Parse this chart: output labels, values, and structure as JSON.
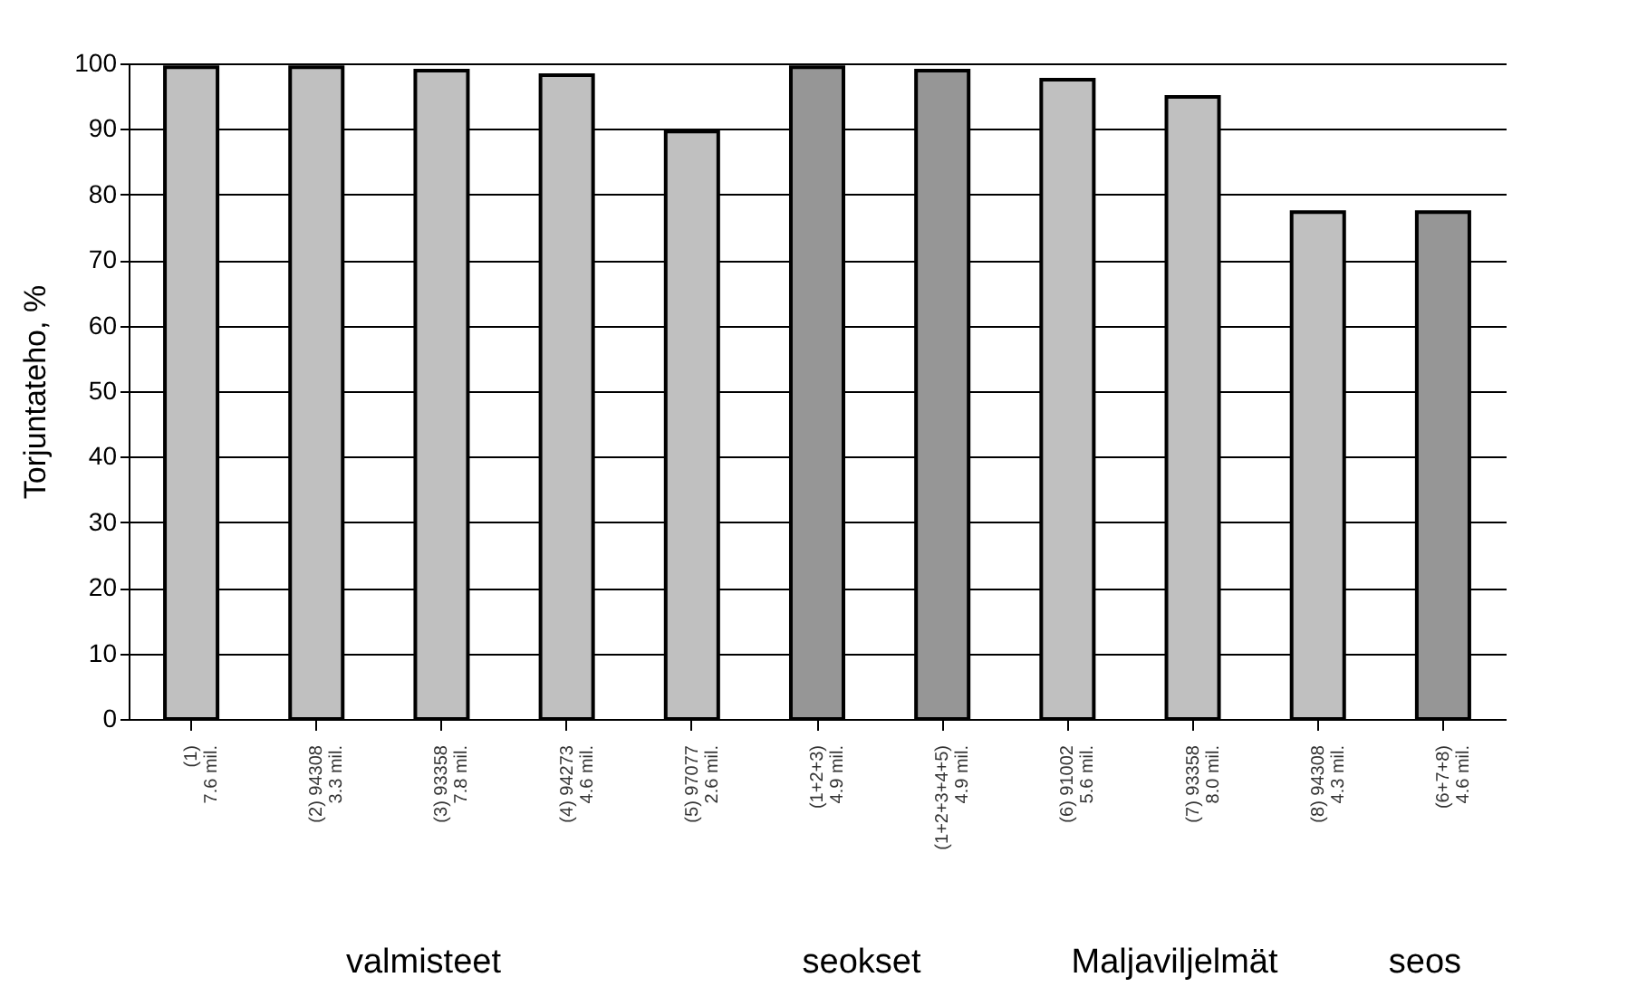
{
  "chart_data": {
    "type": "bar",
    "ylabel": "Torjuntateho, %",
    "categories": [
      "(1)\n7.6 mil.",
      "(2) 94308\n3.3 mil.",
      "(3) 93358\n7.8 mil.",
      "(4) 94273\n4.6 mil.",
      "(5) 97077\n2.6 mil.",
      "(1+2+3)\n4.9 mil.",
      "(1+2+3+4+5)\n4.9 mil.",
      "(6) 91002\n5.6 mil.",
      "(7) 93358\n8.0 mil.",
      "(8) 94308\n4.3 mil.",
      "(6+7+8)\n4.6 mil."
    ],
    "values": [
      99.4,
      99.4,
      98.9,
      98.2,
      89.6,
      99.4,
      98.9,
      97.5,
      94.9,
      77.3,
      77.3
    ],
    "colors": [
      "#c0c0c0",
      "#c0c0c0",
      "#c0c0c0",
      "#c0c0c0",
      "#c0c0c0",
      "#969696",
      "#969696",
      "#c0c0c0",
      "#c0c0c0",
      "#c0c0c0",
      "#969696"
    ],
    "ylim": [
      0,
      100
    ],
    "yticks": [
      0,
      10,
      20,
      30,
      40,
      50,
      60,
      70,
      80,
      90,
      100
    ],
    "grid": "y",
    "annotations": [
      "valmisteet",
      "seokset",
      "Maljaviljelmät",
      "seos"
    ]
  }
}
